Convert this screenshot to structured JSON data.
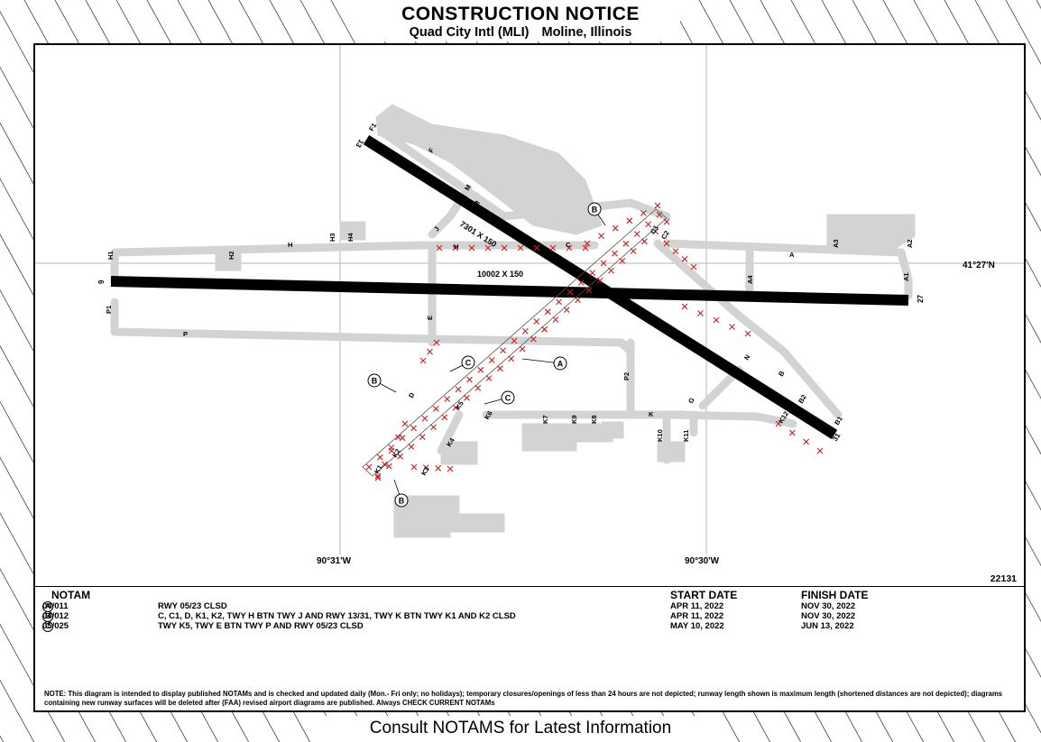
{
  "header": {
    "title": "CONSTRUCTION NOTICE",
    "airport": "Quad City Intl (MLI)",
    "city": "Moline, Illinois"
  },
  "footer": "Consult NOTAMS for Latest Information",
  "chart_number": "22131",
  "coordinates": {
    "lat_right": "41°27'N",
    "lon_left": "90°31'W",
    "lon_right": "90°30'W"
  },
  "runways": [
    {
      "id": "9/27",
      "end_a": "9",
      "end_b": "27",
      "dims": "10002 X 150"
    },
    {
      "id": "13/31",
      "end_a": "13",
      "end_b": "31",
      "dims": "7301 X 150"
    }
  ],
  "taxiway_labels": [
    "F1",
    "F",
    "M",
    "J",
    "H",
    "H1",
    "H2",
    "H3",
    "H4",
    "P",
    "P1",
    "P2",
    "E",
    "C",
    "C1",
    "C2",
    "A",
    "A1",
    "A2",
    "A3",
    "A4",
    "B",
    "B1",
    "B2",
    "N",
    "K",
    "K1",
    "K2",
    "K3",
    "K4",
    "K5",
    "K6",
    "K7",
    "K8",
    "K9",
    "K10",
    "K11",
    "K12",
    "G",
    "D"
  ],
  "callouts": [
    "A",
    "B",
    "B",
    "B",
    "C",
    "C"
  ],
  "notam": {
    "headers": {
      "notam": "NOTAM",
      "start": "START DATE",
      "finish": "FINISH DATE"
    },
    "rows": [
      {
        "marker": "A",
        "id": "04/011",
        "desc": "RWY 05/23 CLSD",
        "start": "APR 11, 2022",
        "finish": "NOV 30, 2022"
      },
      {
        "marker": "B",
        "id": "04/012",
        "desc": "C, C1, D, K1, K2, TWY H BTN TWY J AND RWY 13/31, TWY K BTN TWY K1 AND K2 CLSD",
        "start": "APR 11, 2022",
        "finish": "NOV 30, 2022"
      },
      {
        "marker": "C",
        "id": "05/025",
        "desc": "TWY K5, TWY E BTN TWY P AND RWY 05/23 CLSD",
        "start": "MAY 10, 2022",
        "finish": "JUN 13, 2022"
      }
    ]
  },
  "note": "NOTE:  This diagram is intended to display published NOTAMs and is checked and updated daily (Mon.- Fri only; no holidays); temporary closures/openings of less than 24 hours are not depicted; runway length shown is maximum length (shortened distances are not depicted); diagrams containing new runway surfaces will be deleted after (FAA) revised airport diagrams are published. Always CHECK CURRENT NOTAMs",
  "colors": {
    "runway": "#000000",
    "pavement": "#d3d3d3",
    "closure": "#d11a1a",
    "frame": "#000000"
  }
}
